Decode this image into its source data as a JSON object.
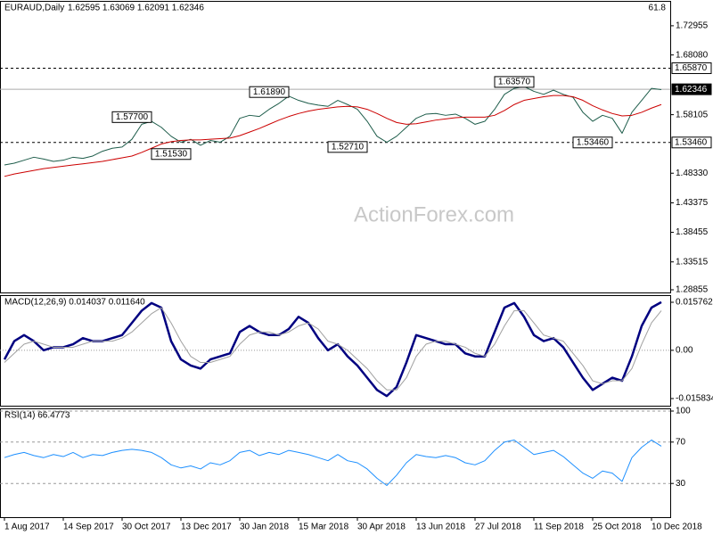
{
  "chart_data": [
    {
      "type": "line",
      "title": "EURAUD,Daily",
      "subtitle": "1.62595 1.63069 1.62091 1.62346",
      "corner_label": "61.8",
      "watermark": "ActionForex.com",
      "categories": [
        "1 Aug 2017",
        null,
        null,
        null,
        null,
        null,
        "14 Sep 2017",
        null,
        null,
        null,
        null,
        null,
        "30 Oct 2017",
        null,
        null,
        null,
        null,
        null,
        "13 Dec 2017",
        null,
        null,
        null,
        null,
        null,
        "30 Jan 2018",
        null,
        null,
        null,
        null,
        null,
        "15 Mar 2018",
        null,
        null,
        null,
        null,
        null,
        "30 Apr 2018",
        null,
        null,
        null,
        null,
        null,
        "13 Jun 2018",
        null,
        null,
        null,
        null,
        null,
        "27 Jul 2018",
        null,
        null,
        null,
        null,
        null,
        "11 Sep 2018",
        null,
        null,
        null,
        null,
        null,
        "25 Oct 2018",
        null,
        null,
        null,
        null,
        null,
        "10 Dec 2018",
        null
      ],
      "series": [
        {
          "color": "#1d5c4a",
          "values": [
            1.497,
            1.5,
            1.505,
            1.51,
            1.507,
            1.503,
            1.505,
            1.51,
            1.508,
            1.512,
            1.52,
            1.525,
            1.527,
            1.54,
            1.565,
            1.57,
            1.56,
            1.545,
            1.535,
            1.54,
            1.53,
            1.538,
            1.535,
            1.545,
            1.575,
            1.58,
            1.578,
            1.59,
            1.6,
            1.612,
            1.605,
            1.6,
            1.597,
            1.595,
            1.605,
            1.598,
            1.59,
            1.57,
            1.545,
            1.535,
            1.545,
            1.56,
            1.575,
            1.582,
            1.583,
            1.58,
            1.582,
            1.575,
            1.565,
            1.57,
            1.59,
            1.615,
            1.625,
            1.628,
            1.62,
            1.615,
            1.622,
            1.615,
            1.61,
            1.585,
            1.57,
            1.58,
            1.575,
            1.55,
            1.585,
            1.605,
            1.625,
            1.623
          ]
        },
        {
          "color": "#cc0000",
          "values": [
            1.478,
            1.482,
            1.485,
            1.488,
            1.491,
            1.493,
            1.495,
            1.497,
            1.499,
            1.501,
            1.503,
            1.506,
            1.509,
            1.512,
            1.518,
            1.525,
            1.532,
            1.536,
            1.538,
            1.539,
            1.539,
            1.54,
            1.541,
            1.542,
            1.546,
            1.552,
            1.558,
            1.565,
            1.572,
            1.578,
            1.583,
            1.587,
            1.59,
            1.592,
            1.594,
            1.595,
            1.594,
            1.59,
            1.583,
            1.575,
            1.568,
            1.565,
            1.566,
            1.569,
            1.572,
            1.574,
            1.576,
            1.577,
            1.577,
            1.577,
            1.58,
            1.588,
            1.598,
            1.605,
            1.608,
            1.611,
            1.613,
            1.613,
            1.611,
            1.605,
            1.596,
            1.589,
            1.583,
            1.579,
            1.58,
            1.585,
            1.592,
            1.598
          ]
        }
      ],
      "ylim": [
        1.2841,
        1.7711
      ],
      "yticks": [
        1.72955,
        {
          "value": 1.6808,
          "label": "1.68080"
        },
        1.58105,
        {
          "value": 1.4833,
          "label": "1.48330"
        },
        1.43375,
        1.38455,
        1.33515,
        1.28855
      ],
      "levels": [
        {
          "value": 1.6587,
          "label": "1.65870",
          "style": "dashed"
        },
        {
          "value": 1.5346,
          "label": "1.53460",
          "style": "dashed"
        },
        {
          "value": 1.62346,
          "label": "1.62346",
          "style": "current"
        }
      ],
      "annotations": [
        {
          "value": 1.577,
          "label": "1.57700"
        },
        {
          "value": 1.5153,
          "label": "1.51530"
        },
        {
          "value": 1.6189,
          "label": "1.61890"
        },
        {
          "value": 1.5271,
          "label": "1.52710"
        },
        {
          "value": 1.6357,
          "label": "1.63570"
        },
        {
          "value": 1.5346,
          "label": "1.53460"
        }
      ]
    },
    {
      "type": "line",
      "title": "MACD(12,26,9) 0.014037 0.011640",
      "series": [
        {
          "color": "#000080",
          "values": [
            -0.003,
            0.003,
            0.005,
            0.003,
            0.0,
            0.001,
            0.001,
            0.002,
            0.004,
            0.003,
            0.003,
            0.004,
            0.005,
            0.009,
            0.013,
            0.0155,
            0.014,
            0.003,
            -0.003,
            -0.005,
            -0.006,
            -0.003,
            -0.002,
            -0.001,
            0.006,
            0.008,
            0.006,
            0.005,
            0.005,
            0.007,
            0.011,
            0.009,
            0.004,
            0.0,
            0.002,
            -0.002,
            -0.005,
            -0.009,
            -0.013,
            -0.015,
            -0.012,
            -0.004,
            0.005,
            0.004,
            0.003,
            0.002,
            0.002,
            -0.001,
            -0.002,
            -0.002,
            0.006,
            0.014,
            0.0155,
            0.011,
            0.005,
            0.003,
            0.004,
            0.001,
            -0.004,
            -0.009,
            -0.013,
            -0.011,
            -0.009,
            -0.01,
            -0.002,
            0.008,
            0.014,
            0.0158
          ]
        },
        {
          "color": "#a0a0a0",
          "values": [
            -0.004,
            -0.001,
            0.002,
            0.003,
            0.002,
            0.001,
            0.001,
            0.001,
            0.002,
            0.003,
            0.003,
            0.003,
            0.004,
            0.006,
            0.009,
            0.012,
            0.014,
            0.009,
            0.003,
            -0.002,
            -0.004,
            -0.004,
            -0.003,
            -0.002,
            0.002,
            0.005,
            0.006,
            0.006,
            0.005,
            0.006,
            0.008,
            0.009,
            0.007,
            0.003,
            0.002,
            0.0,
            -0.003,
            -0.006,
            -0.01,
            -0.013,
            -0.013,
            -0.009,
            -0.002,
            0.002,
            0.003,
            0.003,
            0.002,
            0.001,
            -0.001,
            -0.002,
            0.002,
            0.008,
            0.013,
            0.013,
            0.009,
            0.005,
            0.004,
            0.003,
            -0.001,
            -0.005,
            -0.01,
            -0.011,
            -0.01,
            -0.01,
            -0.006,
            0.002,
            0.009,
            0.013
          ]
        }
      ],
      "ylim": [
        -0.01818,
        0.0181
      ],
      "yticks": [
        0.015762,
        {
          "value": 0,
          "label": "0.00"
        },
        -0.015834
      ],
      "zero_line": true
    },
    {
      "type": "line",
      "title": "RSI(14) 66.4773",
      "series": [
        {
          "color": "#1e90ff",
          "values": [
            55,
            58,
            60,
            57,
            55,
            58,
            56,
            60,
            55,
            58,
            57,
            60,
            62,
            63,
            62,
            60,
            55,
            48,
            45,
            47,
            44,
            50,
            48,
            52,
            60,
            62,
            57,
            60,
            58,
            62,
            60,
            58,
            55,
            52,
            58,
            52,
            50,
            44,
            35,
            28,
            38,
            50,
            58,
            56,
            55,
            57,
            55,
            50,
            48,
            52,
            62,
            70,
            72,
            65,
            58,
            60,
            62,
            56,
            48,
            40,
            35,
            42,
            40,
            32,
            55,
            65,
            72,
            66
          ]
        }
      ],
      "ylim": [
        0,
        100
      ],
      "yticks": [
        100,
        70,
        30
      ],
      "grid": "dashed"
    }
  ]
}
